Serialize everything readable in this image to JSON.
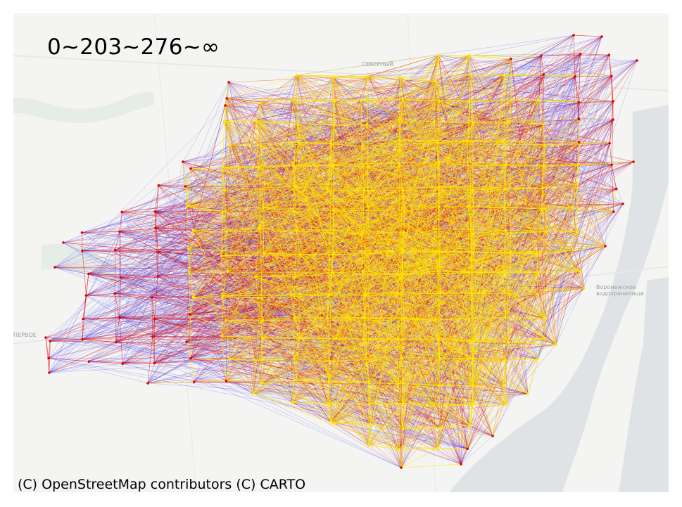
{
  "legend": {
    "thresholds_text": "0~203~276~∞"
  },
  "attribution": {
    "text": "(C) OpenStreetMap contributors (C) CARTO"
  },
  "basemap_labels": {
    "north": "СЕВЕРНЫЙ",
    "west": "ПЕРВОЕ",
    "reservoir": "Воронежское водохранилище"
  },
  "colors": {
    "low": "#1a1aff",
    "mid": "#e00000",
    "high": "#ffe800",
    "water": "#dfe3e6",
    "land": "#f3f3f1",
    "green": "#e8ede8"
  }
}
